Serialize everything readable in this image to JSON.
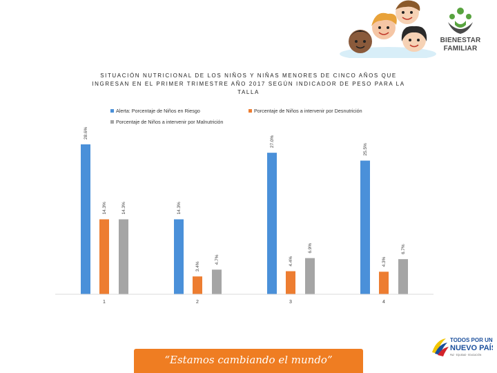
{
  "header": {
    "logo_line1": "BIENESTAR",
    "logo_line2": "FAMILIAR"
  },
  "chart_data": {
    "type": "bar",
    "title": "SITUACIÓN NUTRICIONAL DE LOS  NIÑOS Y NIÑAS MENORES DE CINCO AÑOS QUE INGRESAN EN EL PRIMER TRIMESTRE AÑO 2017 SEGÚN INDICADOR DE PESO PARA LA TALLA",
    "categories": [
      "1",
      "2",
      "3",
      "4"
    ],
    "series": [
      {
        "name": "Alerta: Porcentaje de Niños en Riesgo",
        "color": "#4a90d9",
        "values": [
          28.6,
          14.3,
          27.0,
          25.5
        ],
        "labels": [
          "28.6%",
          "14.3%",
          "27.0%",
          "25.5%"
        ]
      },
      {
        "name": "Porcentaje de Niños a intervenir por Desnutrición",
        "color": "#ed7d31",
        "values": [
          14.3,
          3.4,
          4.4,
          4.3
        ],
        "labels": [
          "14.3%",
          "3.4%",
          "4.4%",
          "4.3%"
        ]
      },
      {
        "name": "Porcentaje de Niños a intervenir por Malnutrición",
        "color": "#a5a5a5",
        "values": [
          14.3,
          4.7,
          6.9,
          6.7
        ],
        "labels": [
          "14.3%",
          "4.7%",
          "6.9%",
          "6.7%"
        ]
      }
    ],
    "ylim": [
      0,
      28.6
    ],
    "grid": false,
    "legend_position": "top"
  },
  "footer": {
    "logo_line1": "TODOS POR UN",
    "logo_line2": "NUEVO PAÍS",
    "logo_line3": "PAZ · EQUIDAD · EDUCACIÓN",
    "slogan": "“Estamos cambiando el mundo”"
  }
}
